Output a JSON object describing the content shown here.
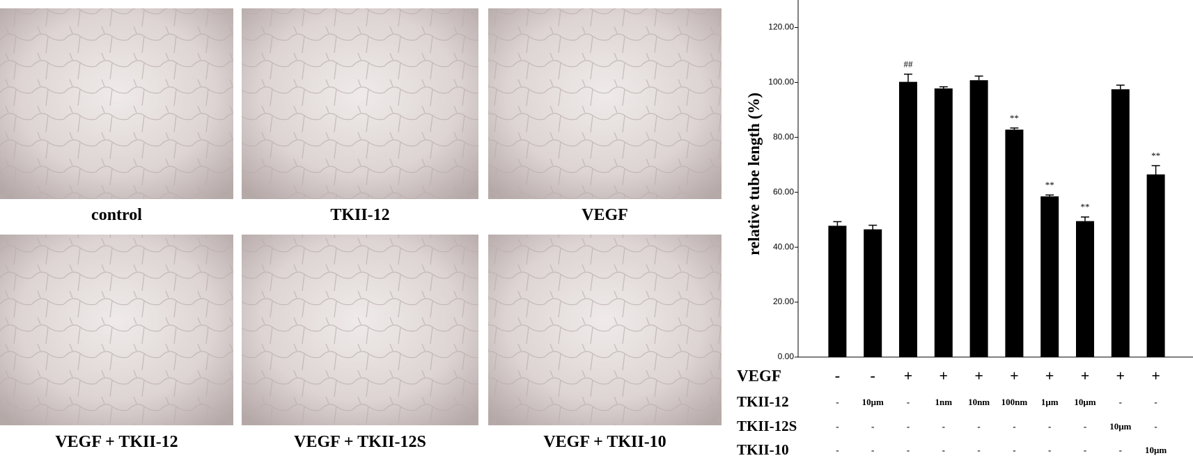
{
  "panels": [
    {
      "caption": "control"
    },
    {
      "caption": "TKII-12"
    },
    {
      "caption": "VEGF"
    },
    {
      "caption": "VEGF + TKII-12"
    },
    {
      "caption": "VEGF + TKII-12S"
    },
    {
      "caption": "VEGF + TKII-10"
    }
  ],
  "chart_data": {
    "type": "bar",
    "y_label": "relative tube length  (%)",
    "values": [
      47.8,
      46.5,
      100.2,
      97.8,
      100.8,
      82.8,
      58.5,
      49.5,
      97.5,
      66.5
    ],
    "errors": [
      1.5,
      1.5,
      2.8,
      0.6,
      1.5,
      0.6,
      0.5,
      1.5,
      1.5,
      3.2
    ],
    "annotations": [
      null,
      null,
      "##",
      null,
      null,
      "**",
      "**",
      "**",
      null,
      "**"
    ],
    "color": "#000000",
    "ylim": [
      0,
      130
    ],
    "yticks": [
      {
        "value": 0,
        "label": "0.00"
      },
      {
        "value": 20,
        "label": "20.00"
      },
      {
        "value": 40,
        "label": "40.00"
      },
      {
        "value": 60,
        "label": "60.00"
      },
      {
        "value": 80,
        "label": "80.00"
      },
      {
        "value": 100,
        "label": "100.00"
      },
      {
        "value": 120,
        "label": "120.00"
      }
    ],
    "conditions": [
      {
        "name": "VEGF",
        "values": [
          "-",
          "-",
          "+",
          "+",
          "+",
          "+",
          "+",
          "+",
          "+",
          "+"
        ]
      },
      {
        "name": "TKII-12",
        "values": [
          "-",
          "10μm",
          "-",
          "1nm",
          "10nm",
          "100nm",
          "1μm",
          "10μm",
          "-",
          "-"
        ]
      },
      {
        "name": "TKII-12S",
        "values": [
          "-",
          "-",
          "-",
          "-",
          "-",
          "-",
          "-",
          "-",
          "10μm",
          "-"
        ]
      },
      {
        "name": "TKII-10",
        "values": [
          "-",
          "-",
          "-",
          "-",
          "-",
          "-",
          "-",
          "-",
          "-",
          "10μm"
        ]
      }
    ]
  }
}
